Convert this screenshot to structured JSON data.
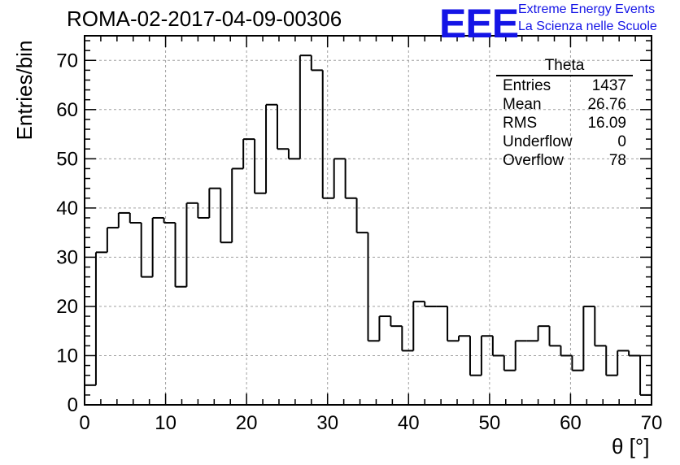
{
  "title": "ROMA-02-2017-04-09-00306",
  "logo": {
    "mark": "EEE",
    "line1": "Extreme Energy Events",
    "line2": "La Scienza nelle Scuole",
    "color": "#1414e6"
  },
  "stats": {
    "title": "Theta",
    "rows": [
      {
        "label": "Entries",
        "value": "1437"
      },
      {
        "label": "Mean",
        "value": "26.76"
      },
      {
        "label": "RMS",
        "value": "16.09"
      },
      {
        "label": "Underflow",
        "value": "0"
      },
      {
        "label": "Overflow",
        "value": "78"
      }
    ]
  },
  "chart_data": {
    "type": "bar",
    "style": "step-histogram",
    "title": "ROMA-02-2017-04-09-00306",
    "xlabel": "θ [°]",
    "ylabel": "Entries/bin",
    "xlim": [
      0,
      70
    ],
    "ylim": [
      0,
      75
    ],
    "bin_width": 1.4,
    "x_ticks": [
      0,
      10,
      20,
      30,
      40,
      50,
      60,
      70
    ],
    "y_ticks": [
      0,
      10,
      20,
      30,
      40,
      50,
      60,
      70
    ],
    "grid": true,
    "values": [
      4,
      31,
      36,
      39,
      37,
      26,
      38,
      37,
      24,
      41,
      38,
      44,
      33,
      48,
      54,
      43,
      61,
      52,
      50,
      71,
      68,
      42,
      50,
      42,
      35,
      13,
      18,
      16,
      11,
      21,
      20,
      20,
      13,
      14,
      6,
      14,
      10,
      7,
      13,
      13,
      16,
      12,
      10,
      7,
      20,
      12,
      6,
      11,
      10,
      2
    ]
  }
}
